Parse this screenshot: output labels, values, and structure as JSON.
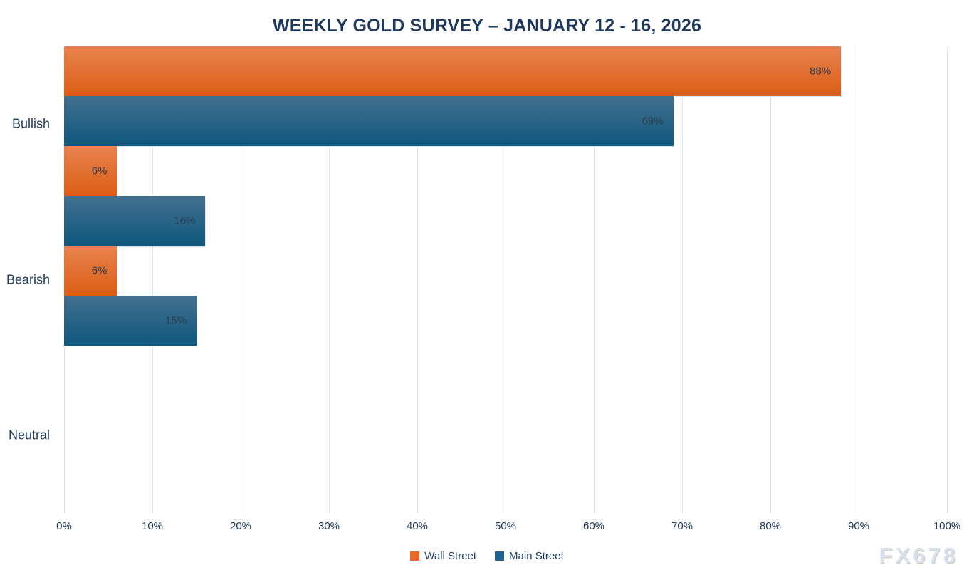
{
  "title": "WEEKLY GOLD SURVEY – JANUARY 12 - 16, 2026",
  "watermark": "FX678",
  "colors": {
    "title_text": "#1f3a5c",
    "axis_text": "#1f3a5c",
    "value_label_text": "#2f3b4c",
    "gridline": "#d9e6f4",
    "background": "#ffffff",
    "watermark_text": "#d7e1ed"
  },
  "chart_data": {
    "type": "bar",
    "orientation": "horizontal",
    "title": "WEEKLY GOLD SURVEY – JANUARY 12 - 16, 2026",
    "categories": [
      "Bullish",
      "Bearish",
      "Neutral"
    ],
    "series": [
      {
        "name": "Wall Street",
        "values": [
          88,
          6,
          6
        ],
        "gradient_top": "#e8834f",
        "gradient_bottom": "#db5d14",
        "legend_color": "#e96b2c"
      },
      {
        "name": "Main Street",
        "values": [
          69,
          16,
          15
        ],
        "gradient_top": "#43708f",
        "gradient_bottom": "#0f587e",
        "legend_color": "#1f628c"
      }
    ],
    "value_suffix": "%",
    "data_labels": [
      "88%",
      "69%",
      "6%",
      "16%",
      "6%",
      "15%"
    ],
    "xlim": [
      0,
      100
    ],
    "x_ticks": [
      "0%",
      "10%",
      "20%",
      "30%",
      "40%",
      "50%",
      "60%",
      "70%",
      "80%",
      "90%",
      "100%"
    ],
    "grid": true,
    "legend_position": "bottom"
  }
}
